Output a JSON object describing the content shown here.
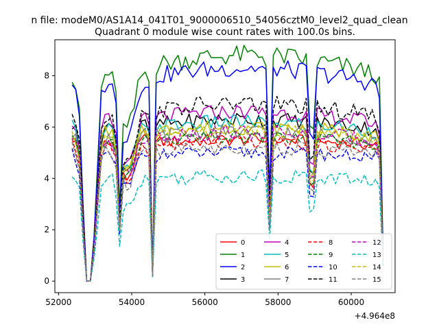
{
  "figure": {
    "suptitle": "n file: modeM0/AS1A14_041T01_9000006510_54056cztM0_level2_quad_clean",
    "offset_label": "+4.964e8"
  },
  "chart_data": {
    "type": "line",
    "title": "Quadrant 0 module wise count rates with 100.0s bins.",
    "xlabel": "",
    "ylabel": "",
    "x_offset": 496400000,
    "xlim": [
      51900,
      61200
    ],
    "ylim": [
      -0.45,
      9.4
    ],
    "xticks": [
      52000,
      54000,
      56000,
      58000,
      60000
    ],
    "xtick_labels": [
      "52000",
      "54000",
      "56000",
      "58000",
      "60000"
    ],
    "yticks": [
      0,
      2,
      4,
      6,
      8
    ],
    "ytick_labels": [
      "0",
      "2",
      "4",
      "6",
      "8"
    ],
    "grid": false,
    "legend_position": "lower-right",
    "legend_columns": 4,
    "x": [
      52370,
      52470,
      52570,
      52670,
      52770,
      52870,
      52970,
      53070,
      53170,
      53270,
      53370,
      53470,
      53570,
      53670,
      53770,
      53870,
      53970,
      54070,
      54170,
      54270,
      54370,
      54470,
      54570,
      54670,
      54770,
      54870,
      54970,
      55070,
      55170,
      55270,
      55370,
      55470,
      55570,
      55670,
      55770,
      55870,
      55970,
      56070,
      56170,
      56270,
      56370,
      56470,
      56570,
      56670,
      56770,
      56870,
      56970,
      57070,
      57170,
      57270,
      57370,
      57470,
      57570,
      57670,
      57770,
      57870,
      57970,
      58070,
      58170,
      58270,
      58370,
      58470,
      58570,
      58670,
      58770,
      58870,
      58970,
      59070,
      59170,
      59270,
      59370,
      59470,
      59570,
      59670,
      59770,
      59870,
      59970,
      60070,
      60170,
      60270,
      60370,
      60470,
      60570,
      60670,
      60770,
      60870
    ],
    "series": [
      {
        "name": "0",
        "color": "#ff0000",
        "dash": "solid",
        "level": 5.2,
        "noise": 0.25,
        "trend": 0.03
      },
      {
        "name": "1",
        "color": "#008000",
        "dash": "solid",
        "level": 7.6,
        "noise": 0.4,
        "trend": 0.12
      },
      {
        "name": "2",
        "color": "#0000ff",
        "dash": "solid",
        "level": 7.3,
        "noise": 0.35,
        "trend": 0.1
      },
      {
        "name": "3",
        "color": "#000000",
        "dash": "solid",
        "level": 5.7,
        "noise": 0.3,
        "trend": 0.06
      },
      {
        "name": "4",
        "color": "#bf00bf",
        "dash": "solid",
        "level": 5.9,
        "noise": 0.3,
        "trend": 0.07
      },
      {
        "name": "5",
        "color": "#00bfbf",
        "dash": "solid",
        "level": 5.6,
        "noise": 0.3,
        "trend": 0.06
      },
      {
        "name": "6",
        "color": "#bfbf00",
        "dash": "solid",
        "level": 5.5,
        "noise": 0.3,
        "trend": 0.05
      },
      {
        "name": "7",
        "color": "#808080",
        "dash": "solid",
        "level": 5.3,
        "noise": 0.3,
        "trend": 0.05
      },
      {
        "name": "8",
        "color": "#ff0000",
        "dash": "dashed",
        "level": 5.0,
        "noise": 0.25,
        "trend": 0.04
      },
      {
        "name": "9",
        "color": "#008000",
        "dash": "dashed",
        "level": 5.2,
        "noise": 0.25,
        "trend": 0.04
      },
      {
        "name": "10",
        "color": "#0000ff",
        "dash": "dashed",
        "level": 4.7,
        "noise": 0.25,
        "trend": 0.03
      },
      {
        "name": "11",
        "color": "#000000",
        "dash": "dashed",
        "level": 6.1,
        "noise": 0.35,
        "trend": 0.08
      },
      {
        "name": "12",
        "color": "#bf00bf",
        "dash": "dashed",
        "level": 5.3,
        "noise": 0.3,
        "trend": 0.05
      },
      {
        "name": "13",
        "color": "#00bfbf",
        "dash": "dashed",
        "level": 3.8,
        "noise": 0.3,
        "trend": 0.03
      },
      {
        "name": "14",
        "color": "#bfbf00",
        "dash": "dashed",
        "level": 5.4,
        "noise": 0.3,
        "trend": 0.05
      },
      {
        "name": "15",
        "color": "#808080",
        "dash": "dashed",
        "level": 4.8,
        "noise": 0.3,
        "trend": 0.04
      }
    ]
  }
}
